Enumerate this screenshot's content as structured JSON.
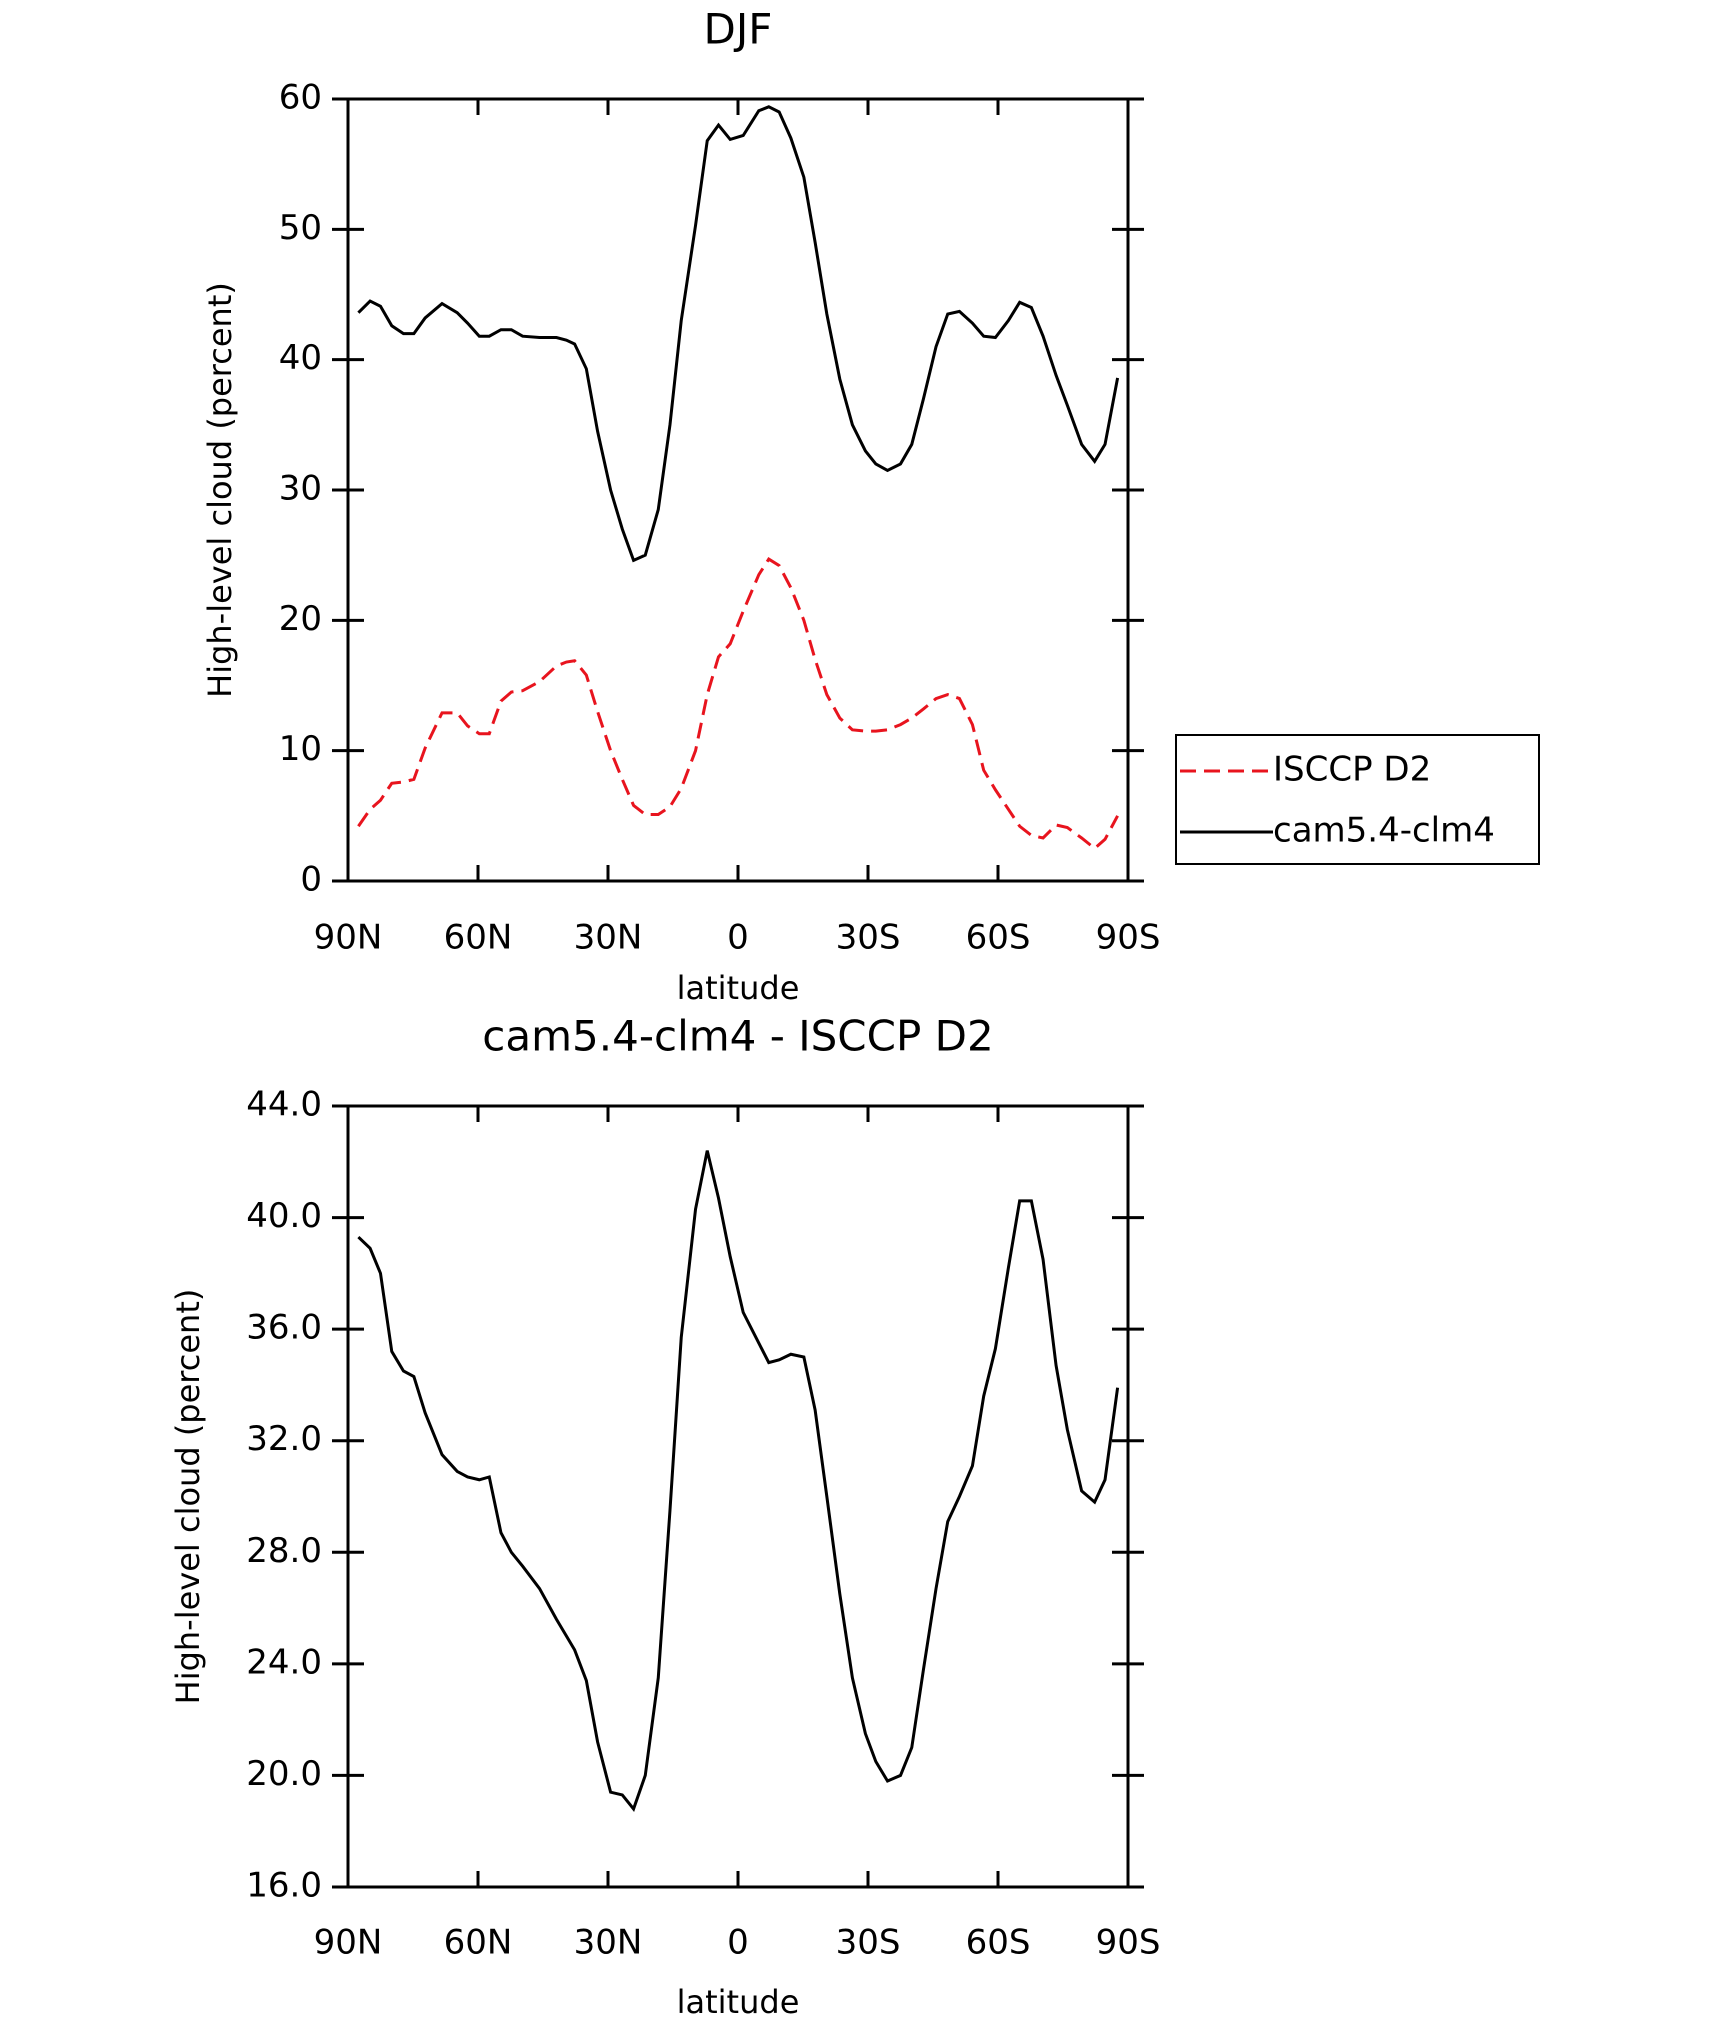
{
  "chart_data": [
    {
      "type": "line",
      "title": "DJF",
      "xlabel": "latitude",
      "ylabel": "High-level cloud (percent)",
      "x": [
        87.6,
        84.9,
        82.5,
        79.9,
        77.2,
        74.8,
        72.2,
        68.3,
        64.8,
        62.4,
        59.7,
        57.4,
        54.7,
        52.3,
        49.7,
        45.8,
        41.9,
        39.6,
        37.7,
        35.0,
        32.4,
        29.4,
        26.7,
        24.1,
        21.4,
        18.4,
        15.7,
        13.1,
        9.8,
        7.1,
        4.5,
        1.8,
        -1.2,
        -4.8,
        -7.1,
        -9.5,
        -12.2,
        -15.2,
        -17.8,
        -20.5,
        -23.5,
        -26.4,
        -29.4,
        -31.8,
        -34.5,
        -37.5,
        -40.1,
        -42.8,
        -45.7,
        -48.4,
        -51.1,
        -54.1,
        -56.7,
        -59.4,
        -62.4,
        -65.0,
        -67.7,
        -70.4,
        -73.4,
        -76.0,
        -79.3,
        -82.3,
        -84.7,
        -87.6
      ],
      "series": [
        {
          "name": "ISCCP D2",
          "color": "#e8141e",
          "line_style": "dashed",
          "values": [
            4.2,
            5.5,
            6.2,
            7.5,
            7.6,
            7.8,
            10.2,
            12.9,
            12.9,
            11.9,
            11.3,
            11.3,
            13.8,
            14.5,
            14.6,
            15.3,
            16.5,
            16.8,
            16.9,
            15.8,
            13.0,
            10.0,
            7.8,
            5.8,
            5.1,
            5.1,
            5.7,
            7.1,
            10.0,
            14.3,
            17.2,
            18.2,
            20.7,
            23.5,
            24.7,
            24.2,
            22.5,
            20.0,
            17.0,
            14.3,
            12.5,
            11.6,
            11.5,
            11.5,
            11.6,
            12.0,
            12.5,
            13.2,
            14.0,
            14.3,
            14.0,
            12.0,
            8.5,
            7.0,
            5.5,
            4.2,
            3.5,
            3.3,
            4.3,
            4.1,
            3.3,
            2.5,
            3.2,
            5.0
          ]
        },
        {
          "name": "cam5.4-clm4",
          "color": "#000000",
          "line_style": "solid",
          "values": [
            43.6,
            44.5,
            44.1,
            42.6,
            42.0,
            42.0,
            43.2,
            44.3,
            43.6,
            42.8,
            41.8,
            41.8,
            42.3,
            42.3,
            41.8,
            41.7,
            41.7,
            41.5,
            41.2,
            39.3,
            34.5,
            30.0,
            27.0,
            24.6,
            25.0,
            28.5,
            35.0,
            43.0,
            50.3,
            56.8,
            58.0,
            56.9,
            57.2,
            59.1,
            59.4,
            59.0,
            57.0,
            54.0,
            49.0,
            43.5,
            38.5,
            35.0,
            33.0,
            32.0,
            31.5,
            32.0,
            33.5,
            37.0,
            41.0,
            43.5,
            43.7,
            42.8,
            41.8,
            41.7,
            43.0,
            44.4,
            44.0,
            41.8,
            38.8,
            36.5,
            33.5,
            32.2,
            33.5,
            38.6
          ]
        }
      ],
      "xlim": [
        90,
        -90
      ],
      "xticks": [
        {
          "value": 90,
          "label": "90N"
        },
        {
          "value": 60,
          "label": "60N"
        },
        {
          "value": 30,
          "label": "30N"
        },
        0,
        {
          "value": -30,
          "label": "30S"
        },
        {
          "value": -60,
          "label": "60S"
        },
        {
          "value": -90,
          "label": "90S"
        }
      ],
      "ylim": [
        0,
        60
      ],
      "yticks": [
        0,
        10,
        20,
        30,
        40,
        50,
        60
      ],
      "legend": "right"
    },
    {
      "type": "line",
      "title": "cam5.4-clm4 - ISCCP D2",
      "xlabel": "latitude",
      "ylabel": "High-level cloud (percent)",
      "x": [
        87.6,
        84.9,
        82.5,
        79.9,
        77.2,
        74.8,
        72.2,
        68.3,
        64.8,
        62.4,
        59.7,
        57.4,
        54.7,
        52.3,
        49.7,
        45.8,
        41.9,
        39.6,
        37.7,
        35.0,
        32.4,
        29.4,
        26.7,
        24.1,
        21.4,
        18.4,
        15.7,
        13.1,
        9.8,
        7.1,
        4.5,
        1.8,
        -1.2,
        -4.8,
        -7.1,
        -9.5,
        -12.2,
        -15.2,
        -17.8,
        -20.5,
        -23.5,
        -26.4,
        -29.4,
        -31.8,
        -34.5,
        -37.5,
        -40.1,
        -42.8,
        -45.7,
        -48.4,
        -51.1,
        -54.1,
        -56.7,
        -59.4,
        -62.4,
        -65.0,
        -67.7,
        -70.4,
        -73.4,
        -76.0,
        -79.3,
        -82.3,
        -84.7,
        -87.6
      ],
      "series": [
        {
          "color": "#000000",
          "line_style": "solid",
          "values": [
            39.3,
            38.9,
            38.0,
            35.2,
            34.5,
            34.3,
            33.0,
            31.5,
            30.9,
            30.7,
            30.6,
            30.7,
            28.7,
            28.0,
            27.5,
            26.7,
            25.6,
            25.0,
            24.5,
            23.4,
            21.2,
            19.4,
            19.3,
            18.8,
            20.0,
            23.5,
            29.5,
            35.7,
            40.3,
            42.4,
            40.7,
            38.6,
            36.6,
            35.5,
            34.8,
            34.9,
            35.1,
            35.0,
            33.1,
            30.0,
            26.5,
            23.5,
            21.5,
            20.5,
            19.8,
            20.0,
            21.0,
            23.8,
            26.7,
            29.1,
            30.0,
            31.1,
            33.6,
            35.3,
            38.2,
            40.6,
            40.6,
            38.5,
            34.7,
            32.4,
            30.2,
            29.8,
            30.6,
            33.9
          ]
        }
      ],
      "xlim": [
        90,
        -90
      ],
      "xticks": [
        {
          "value": 90,
          "label": "90N"
        },
        {
          "value": 60,
          "label": "60N"
        },
        {
          "value": 30,
          "label": "30N"
        },
        0,
        {
          "value": -30,
          "label": "30S"
        },
        {
          "value": -60,
          "label": "60S"
        },
        {
          "value": -90,
          "label": "90S"
        }
      ],
      "ylim": [
        16,
        44
      ],
      "yticks": [
        {
          "value": 16,
          "label": "16.0"
        },
        {
          "value": 20,
          "label": "20.0"
        },
        {
          "value": 24,
          "label": "24.0"
        },
        {
          "value": 28,
          "label": "28.0"
        },
        {
          "value": 32,
          "label": "32.0"
        },
        {
          "value": 36,
          "label": "36.0"
        },
        {
          "value": 40,
          "label": "40.0"
        },
        {
          "value": 44,
          "label": "44.0"
        }
      ]
    }
  ]
}
